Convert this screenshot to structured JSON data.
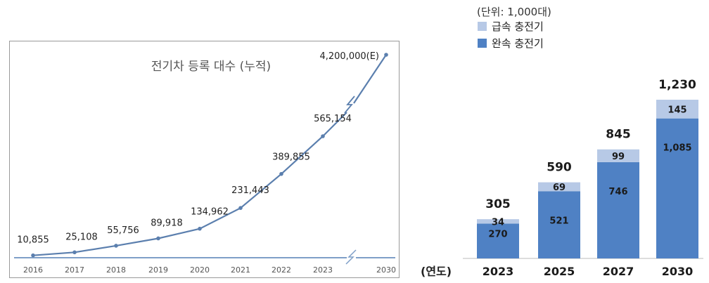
{
  "chart_data": [
    {
      "type": "line",
      "title": "전기차 등록 대수 (누적)",
      "x": [
        "2016",
        "2017",
        "2018",
        "2019",
        "2020",
        "2021",
        "2022",
        "2023",
        "2030"
      ],
      "series": [
        {
          "values": [
            10855,
            25108,
            55756,
            89918,
            134962,
            231443,
            389855,
            565154,
            4200000
          ],
          "labels": [
            "10,855",
            "25,108",
            "55,756",
            "89,918",
            "134,962",
            "231,443",
            "389,855",
            "565,154",
            "4,200,000(E)"
          ]
        }
      ],
      "axis_break_between": [
        "2023",
        "2030"
      ],
      "grid": false,
      "colors": {
        "line": "#5b7fae",
        "axis": "#7f9fc8"
      }
    },
    {
      "type": "bar",
      "stacked": true,
      "unit_label": "(단위: 1,000대)",
      "xlabel": "(연도)",
      "categories": [
        "2023",
        "2025",
        "2027",
        "2030"
      ],
      "series": [
        {
          "name": "완속 충전기",
          "values": [
            270,
            521,
            746,
            1085
          ],
          "labels": [
            "270",
            "521",
            "746",
            "1,085"
          ],
          "color": "#4f81c4"
        },
        {
          "name": "급속 충전기",
          "values": [
            34,
            69,
            99,
            145
          ],
          "labels": [
            "34",
            "69",
            "99",
            "145"
          ],
          "color": "#b7c9e6"
        }
      ],
      "totals": [
        305,
        590,
        845,
        1230
      ],
      "total_labels": [
        "305",
        "590",
        "845",
        "1,230"
      ],
      "legend": "top-left",
      "grid": false
    }
  ]
}
